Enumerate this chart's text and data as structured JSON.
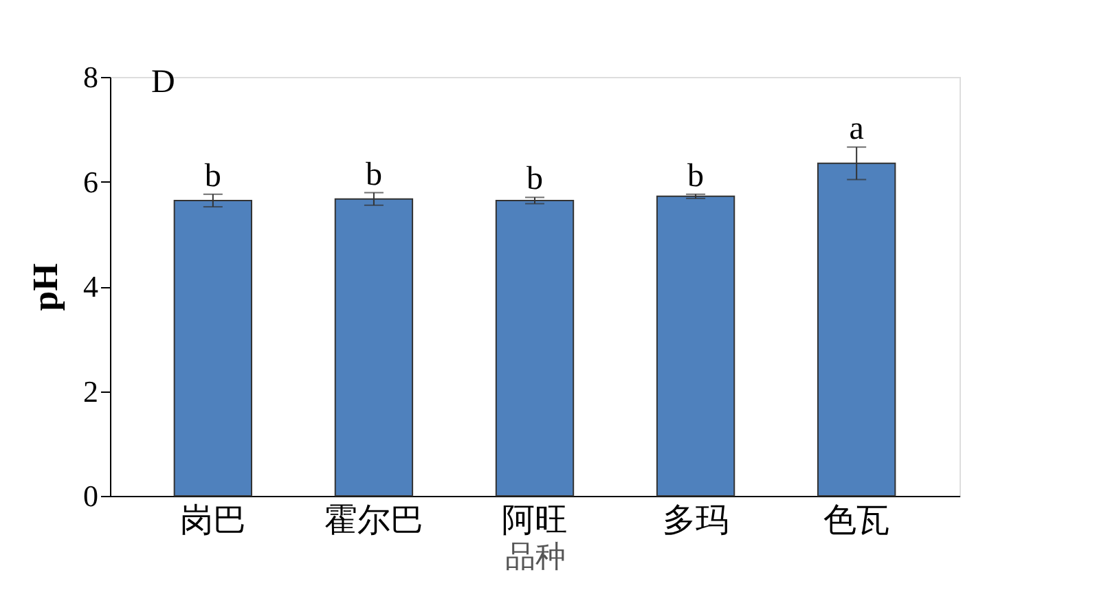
{
  "chart_data": {
    "type": "bar",
    "categories": [
      "岗巴",
      "霍尔巴",
      "阿旺",
      "多玛",
      "色瓦"
    ],
    "values": [
      5.64,
      5.67,
      5.64,
      5.72,
      6.35
    ],
    "errors": [
      0.12,
      0.12,
      0.06,
      0.04,
      0.31
    ],
    "color": "#4f81bd",
    "xlabel": "品种",
    "ylabel": "pH",
    "ylim": [
      0,
      8
    ],
    "yticks": [
      0,
      2,
      4,
      6,
      8
    ],
    "grid": false,
    "annotations": [
      "D",
      {
        "text": "b",
        "x": "岗巴",
        "y": 5.76
      },
      {
        "text": "b",
        "x": "霍尔巴",
        "y": 5.79
      },
      {
        "text": "b",
        "x": "阿旺",
        "y": 5.7
      },
      {
        "text": "b",
        "x": "多玛",
        "y": 5.76
      },
      {
        "text": "a",
        "x": "色瓦",
        "y": 6.66
      }
    ]
  }
}
